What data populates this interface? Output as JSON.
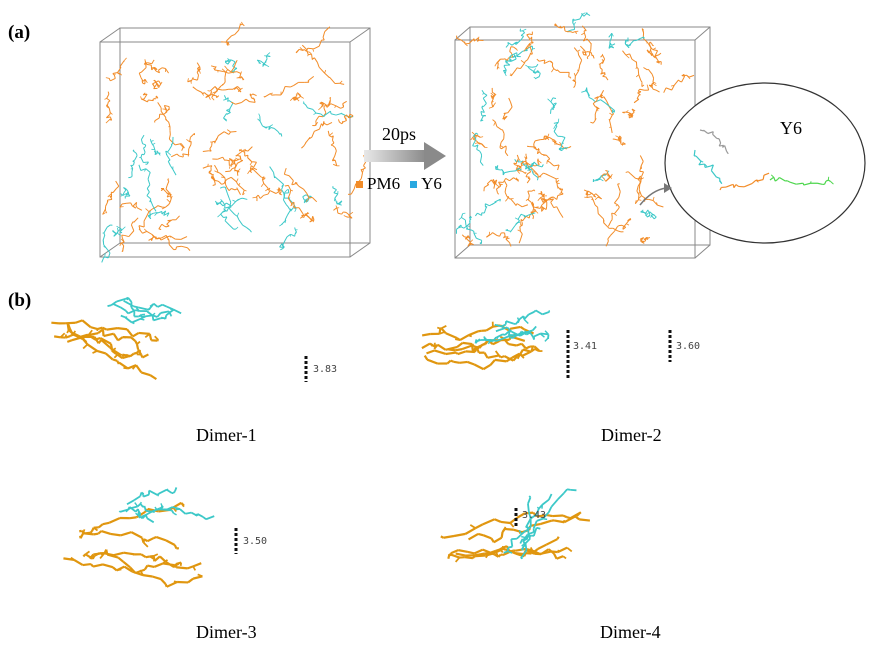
{
  "panel_a_label": "(a)",
  "panel_b_label": "(b)",
  "arrow_label": "20ps",
  "legend": [
    {
      "label": "PM6",
      "color": "#f28c28"
    },
    {
      "label": "Y6",
      "color": "#29a8e0"
    }
  ],
  "inset_label": "Y6",
  "dimers": [
    {
      "label": "Dimer-1",
      "distances": [
        "3.83"
      ]
    },
    {
      "label": "Dimer-2",
      "distances": [
        "3.41",
        "3.60"
      ]
    },
    {
      "label": "Dimer-3",
      "distances": [
        "3.50"
      ]
    },
    {
      "label": "Dimer-4",
      "distances": [
        "3.43"
      ]
    }
  ],
  "colors": {
    "pm6": "#f28c28",
    "pm6_dimer": "#e0960f",
    "y6": "#3cc8c8",
    "y6_inset_gray": "#9a9a9a",
    "y6_inset_green": "#4cd64c"
  }
}
